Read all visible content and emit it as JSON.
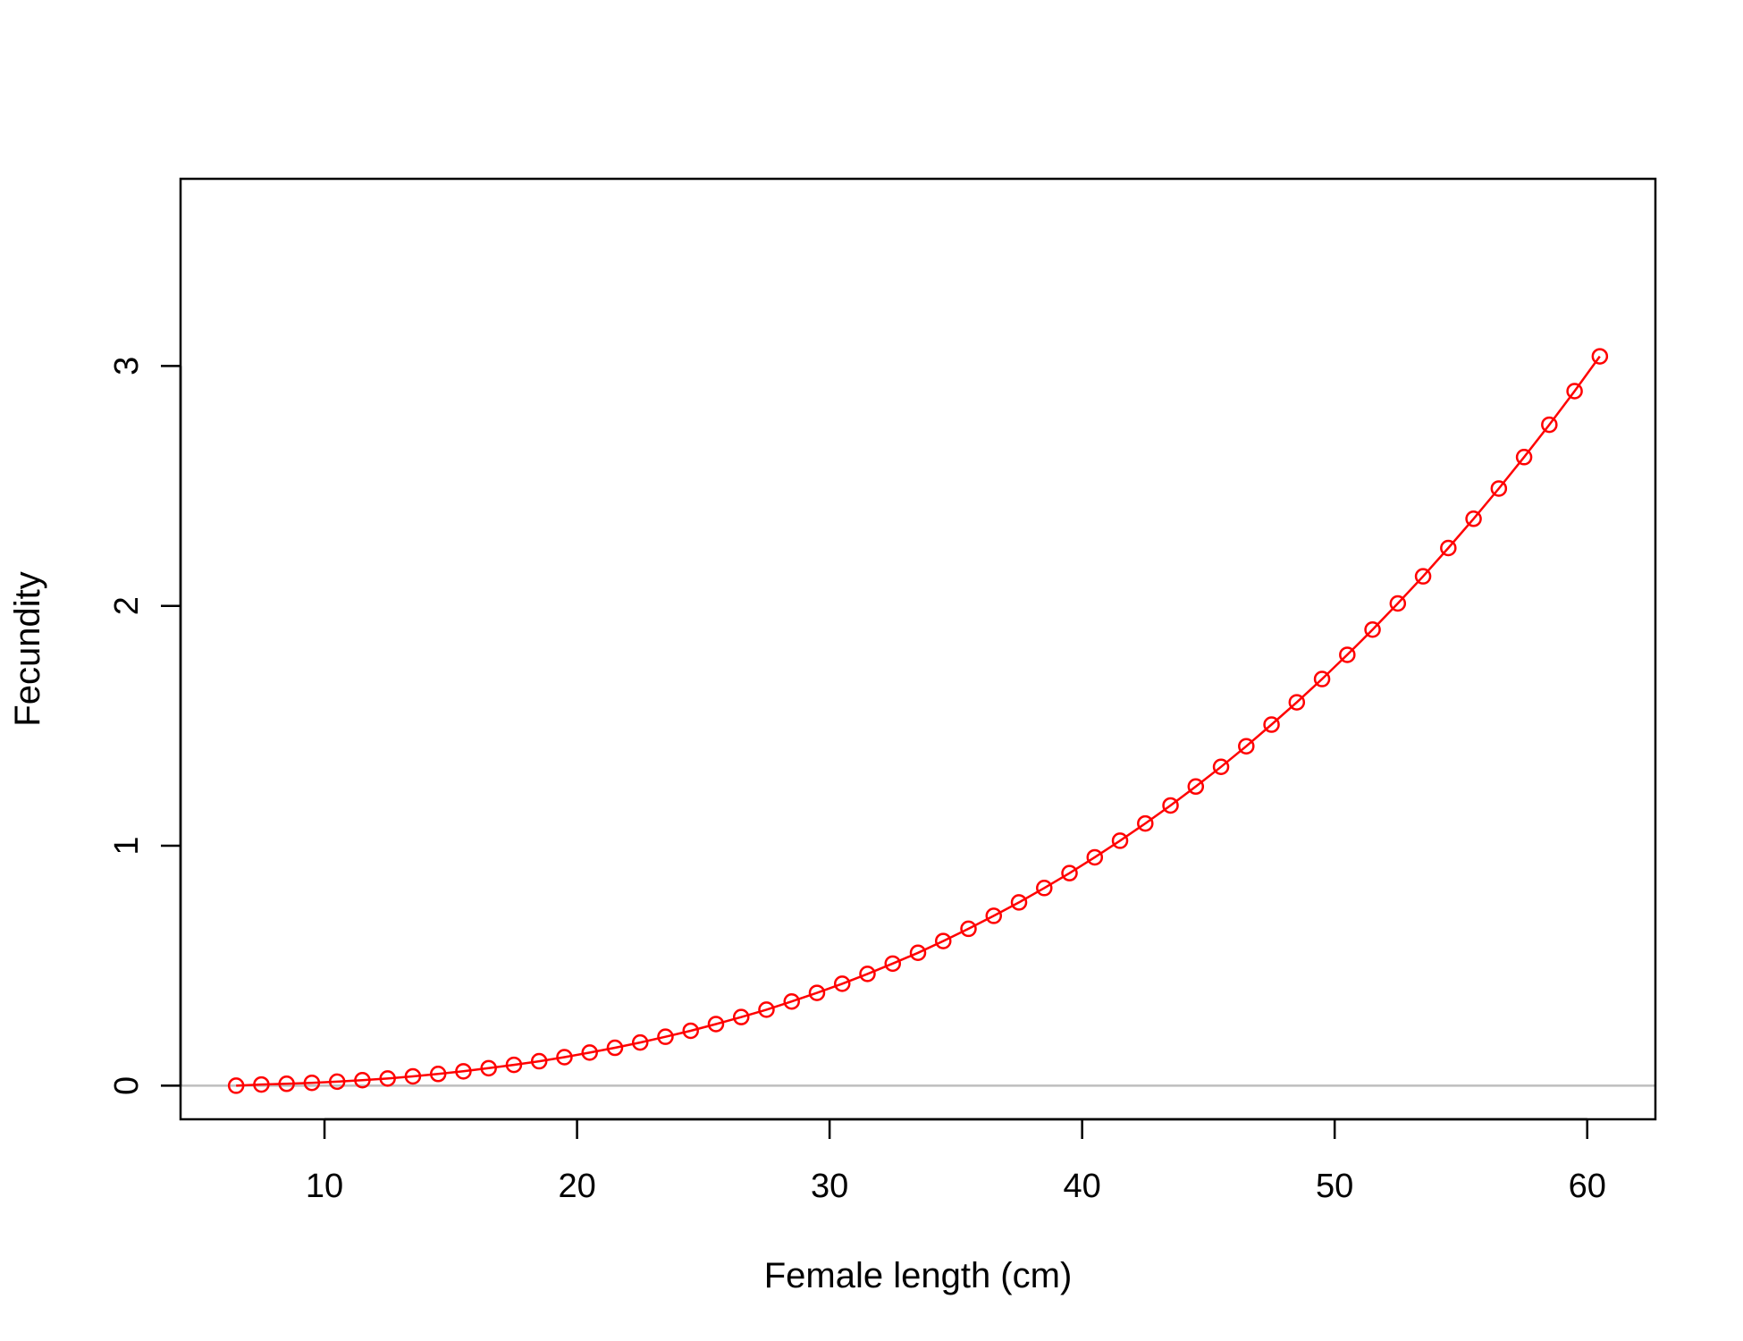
{
  "chart_data": {
    "type": "line",
    "xlabel": "Female length (cm)",
    "ylabel": "Fecundity",
    "xlim": [
      4.3,
      62.7
    ],
    "ylim": [
      -0.14,
      3.78
    ],
    "x_ticks": [
      10,
      20,
      30,
      40,
      50,
      60
    ],
    "y_ticks": [
      0,
      1,
      2,
      3
    ],
    "grid": false,
    "reference_line": {
      "y": 0,
      "color": "#bebebe"
    },
    "series_color": "#ff0000",
    "markers": "open-circle",
    "series": [
      {
        "x": [
          6.5,
          7.5,
          8.5,
          9.5,
          10.5,
          11.5,
          12.5,
          13.5,
          14.5,
          15.5,
          16.5,
          17.5,
          18.5,
          19.5,
          20.5,
          21.5,
          22.5,
          23.5,
          24.5,
          25.5,
          26.5,
          27.5,
          28.5,
          29.5,
          30.5,
          31.5,
          32.5,
          33.5,
          34.5,
          35.5,
          36.5,
          37.5,
          38.5,
          39.5,
          40.5,
          41.5,
          42.5,
          43.5,
          44.5,
          45.5,
          46.5,
          47.5,
          48.5,
          49.5,
          50.5,
          51.5,
          52.5,
          53.5,
          54.5,
          55.5,
          56.5,
          57.5,
          58.5,
          59.5,
          60.5
        ],
        "y": [
          0.0,
          0.005,
          0.008,
          0.012,
          0.017,
          0.023,
          0.03,
          0.039,
          0.049,
          0.06,
          0.073,
          0.087,
          0.102,
          0.119,
          0.138,
          0.158,
          0.18,
          0.204,
          0.229,
          0.257,
          0.286,
          0.317,
          0.351,
          0.387,
          0.425,
          0.466,
          0.509,
          0.554,
          0.603,
          0.654,
          0.708,
          0.764,
          0.824,
          0.886,
          0.952,
          1.021,
          1.093,
          1.168,
          1.247,
          1.329,
          1.415,
          1.505,
          1.598,
          1.695,
          1.796,
          1.901,
          2.01,
          2.123,
          2.241,
          2.363,
          2.489,
          2.62,
          2.755,
          2.895,
          3.04
        ]
      }
    ]
  }
}
